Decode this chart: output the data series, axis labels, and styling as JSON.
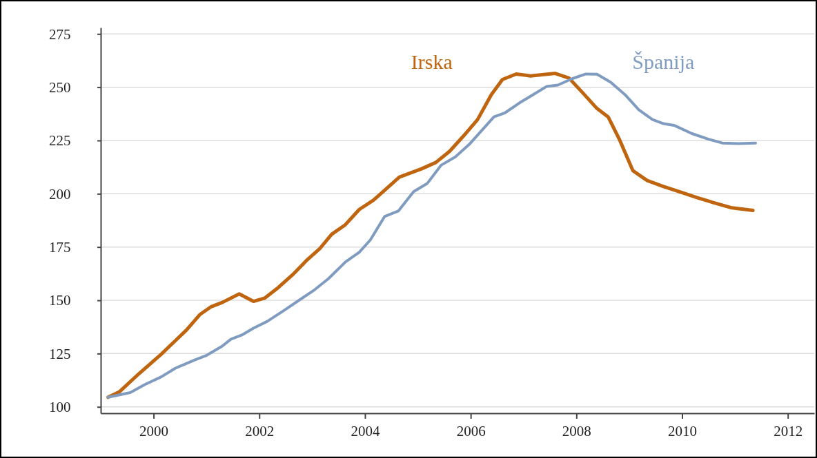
{
  "chart_data": {
    "type": "line",
    "xlim": [
      1999,
      2012.5
    ],
    "xticks": [
      2000,
      2002,
      2004,
      2006,
      2008,
      2010,
      2012
    ],
    "ylim": [
      97,
      278
    ],
    "yticks": [
      100,
      125,
      150,
      175,
      200,
      225,
      250,
      275
    ],
    "grid": "y",
    "line_style": "solid",
    "series": [
      {
        "name": "Irska",
        "color": "#c0650f",
        "x": [
          1999.14,
          1999.35,
          1999.72,
          2000.14,
          2000.41,
          2000.62,
          2000.88,
          2001.09,
          2001.3,
          2001.62,
          2001.89,
          2002.1,
          2002.36,
          2002.63,
          2002.89,
          2003.15,
          2003.37,
          2003.63,
          2003.89,
          2004.16,
          2004.37,
          2004.65,
          2005.07,
          2005.34,
          2005.6,
          2005.86,
          2006.13,
          2006.39,
          2006.6,
          2006.86,
          2007.13,
          2007.6,
          2007.86,
          2008.13,
          2008.39,
          2008.6,
          2008.81,
          2009.07,
          2009.34,
          2009.65,
          2009.97,
          2010.28,
          2010.6,
          2010.92,
          2011.34
        ],
        "values": [
          104.5,
          107,
          115.5,
          124.6,
          131,
          136,
          143.4,
          147,
          149,
          153,
          149.5,
          151,
          156,
          162,
          168.6,
          174.4,
          181,
          185.5,
          192.6,
          197,
          201.6,
          207.8,
          211.7,
          214.7,
          219.9,
          227,
          234.8,
          246.5,
          253.6,
          256.2,
          255.3,
          256.5,
          254.3,
          247.1,
          240,
          236.1,
          225.7,
          210.8,
          206.2,
          203.4,
          200.8,
          198.2,
          195.8,
          193.5,
          192.2
        ]
      },
      {
        "name": "Španija",
        "color": "#7f9cc0",
        "x": [
          1999.14,
          1999.56,
          1999.83,
          2000.14,
          2000.41,
          2000.78,
          2000.99,
          2001.3,
          2001.46,
          2001.67,
          2001.89,
          2002.15,
          2002.47,
          2002.78,
          2003.05,
          2003.31,
          2003.63,
          2003.89,
          2004.1,
          2004.37,
          2004.63,
          2004.92,
          2005.18,
          2005.44,
          2005.71,
          2005.97,
          2006.23,
          2006.44,
          2006.65,
          2006.92,
          2007.18,
          2007.44,
          2007.65,
          2007.92,
          2008.18,
          2008.39,
          2008.65,
          2008.92,
          2009.18,
          2009.44,
          2009.65,
          2009.86,
          2010.18,
          2010.49,
          2010.76,
          2011.07,
          2011.39
        ],
        "values": [
          104.5,
          106.7,
          110.4,
          114,
          118.1,
          122,
          124,
          128.5,
          131.7,
          133.7,
          136.9,
          140.1,
          145.3,
          150.5,
          155,
          160.2,
          168,
          172.5,
          178.3,
          189.3,
          191.9,
          201,
          204.9,
          213.4,
          217.3,
          223.1,
          230.3,
          236.1,
          238,
          242.6,
          246.5,
          250.4,
          251,
          254,
          256.2,
          256.1,
          252.3,
          246.5,
          239.4,
          234.8,
          232.9,
          232,
          228.3,
          225.7,
          223.8,
          223.5,
          223.8
        ]
      }
    ]
  }
}
